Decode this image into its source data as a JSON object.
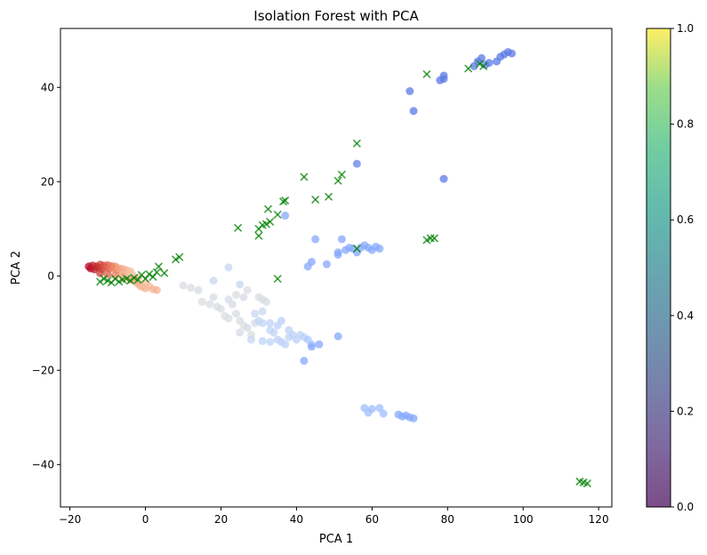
{
  "chart_data": {
    "type": "scatter",
    "title": "Isolation Forest with PCA",
    "xlabel": "PCA 1",
    "ylabel": "PCA 2",
    "xlim": [
      -22.5,
      123.5
    ],
    "ylim": [
      -49,
      52.5
    ],
    "xticks": [
      -20,
      0,
      20,
      40,
      60,
      80,
      100,
      120
    ],
    "yticks": [
      -40,
      -20,
      0,
      20,
      40
    ],
    "grid": false,
    "colorbar": {
      "range": [
        0,
        1
      ],
      "ticks": [
        0.0,
        0.2,
        0.4,
        0.6,
        0.8,
        1.0
      ],
      "tick_labels": [
        "0.0",
        "0.2",
        "0.4",
        "0.6",
        "0.8",
        "1.0"
      ],
      "colormap": "viridis"
    },
    "series": [
      {
        "kind": "inlier",
        "marker": "circle",
        "points": [
          [
            -15,
            2,
            "#b40426"
          ],
          [
            -14.5,
            1.6,
            "#b40426"
          ],
          [
            -14,
            2.2,
            "#be1d2a"
          ],
          [
            -13.5,
            1.4,
            "#be1d2a"
          ],
          [
            -13,
            2.0,
            "#c32e31"
          ],
          [
            -12.5,
            1.8,
            "#c32e31"
          ],
          [
            -12,
            2.4,
            "#cc403a"
          ],
          [
            -11.5,
            1.5,
            "#cc403a"
          ],
          [
            -11,
            2.2,
            "#d24b40"
          ],
          [
            -10.5,
            1.9,
            "#d8594c"
          ],
          [
            -10,
            2.3,
            "#de614d"
          ],
          [
            -9.5,
            1.6,
            "#e36c55"
          ],
          [
            -9,
            2.1,
            "#e8765c"
          ],
          [
            -8.5,
            1.7,
            "#ec8062"
          ],
          [
            -8,
            2.0,
            "#ef8a62"
          ],
          [
            -7.5,
            1.3,
            "#f0906a"
          ],
          [
            -7,
            1.6,
            "#f3a17f"
          ],
          [
            -6.5,
            1.0,
            "#f3a17f"
          ],
          [
            -6,
            1.5,
            "#f4a886"
          ],
          [
            -5.5,
            0.8,
            "#f6b192"
          ],
          [
            -5,
            1.2,
            "#f6b192"
          ],
          [
            -4.5,
            0.6,
            "#f5bc9e"
          ],
          [
            -4,
            1.0,
            "#f5bc9e"
          ],
          [
            -3.5,
            0.4,
            "#f2c6ad"
          ],
          [
            -3,
            -0.4,
            "#f2c6ad"
          ],
          [
            -2.5,
            -1.2,
            "#f5bc9e"
          ],
          [
            -2,
            -1.6,
            "#f6b192"
          ],
          [
            -1.5,
            -2.0,
            "#f6b192"
          ],
          [
            -1,
            -2.3,
            "#f5bc9e"
          ],
          [
            0,
            -2.6,
            "#f6b192"
          ],
          [
            1,
            -2.2,
            "#f5bc9e"
          ],
          [
            2,
            -2.8,
            "#f6b192"
          ],
          [
            3,
            -3.0,
            "#f6b192"
          ],
          [
            -12,
            0.6,
            "#cc403a"
          ],
          [
            -10,
            0.4,
            "#de614d"
          ],
          [
            -8,
            0.2,
            "#ec8062"
          ],
          [
            -6,
            -0.2,
            "#f3a17f"
          ],
          [
            -4,
            -0.8,
            "#f4a886"
          ],
          [
            -2,
            -0.4,
            "#f5bc9e"
          ],
          [
            0,
            -1.6,
            "#f5bc9e"
          ],
          [
            10,
            -2.0,
            "#dadce0"
          ],
          [
            12,
            -2.5,
            "#dadce0"
          ],
          [
            14,
            -3.0,
            "#d5dbe5"
          ],
          [
            15,
            -5.5,
            "#dadce0"
          ],
          [
            17,
            -6.0,
            "#dadce0"
          ],
          [
            18,
            -4.5,
            "#d5dbe5"
          ],
          [
            19,
            -6.5,
            "#dadce0"
          ],
          [
            20,
            -7.0,
            "#dadce0"
          ],
          [
            21,
            -8.5,
            "#dadce0"
          ],
          [
            22,
            -5.0,
            "#d5dbe5"
          ],
          [
            22,
            -9.0,
            "#dadce0"
          ],
          [
            23,
            -6.0,
            "#d5dbe5"
          ],
          [
            24,
            -8.0,
            "#dadce0"
          ],
          [
            25,
            -9.5,
            "#dadce0"
          ],
          [
            25,
            -12.0,
            "#d5dbe5"
          ],
          [
            26,
            -10.5,
            "#dadce0"
          ],
          [
            27,
            -11.0,
            "#d5dbe5"
          ],
          [
            28,
            -12.5,
            "#dadce0"
          ],
          [
            29,
            -10.0,
            "#d5dbe5"
          ],
          [
            30,
            -4.5,
            "#dadce0"
          ],
          [
            31,
            -5.0,
            "#dadce0"
          ],
          [
            32,
            -5.5,
            "#d5dbe5"
          ],
          [
            24,
            -4.0,
            "#dadce0"
          ],
          [
            26,
            -4.5,
            "#d5dbe5"
          ],
          [
            27,
            -3.0,
            "#dadce0"
          ],
          [
            18,
            -1.0,
            "#c9d7f0"
          ],
          [
            22,
            1.8,
            "#c9d7f0"
          ],
          [
            25,
            -1.8,
            "#c9d7f0"
          ],
          [
            30,
            -9.5,
            "#c0d4f5"
          ],
          [
            31,
            -10.0,
            "#c0d4f5"
          ],
          [
            33,
            -11.5,
            "#c0d4f5"
          ],
          [
            34,
            -12.0,
            "#c0d4f5"
          ],
          [
            35,
            -13.5,
            "#bcd2f7"
          ],
          [
            36,
            -14.0,
            "#bcd2f7"
          ],
          [
            37,
            -14.5,
            "#bcd2f7"
          ],
          [
            38,
            -13.0,
            "#bcd2f7"
          ],
          [
            39,
            -12.5,
            "#bcd2f7"
          ],
          [
            40,
            -13.5,
            "#bcd2f7"
          ],
          [
            41,
            -12.5,
            "#bcd2f7"
          ],
          [
            42,
            -13.0,
            "#bcd2f7"
          ],
          [
            33,
            -10.0,
            "#c0d4f5"
          ],
          [
            35,
            -10.5,
            "#bcd2f7"
          ],
          [
            36,
            -9.5,
            "#bcd2f7"
          ],
          [
            38,
            -11.5,
            "#bcd2f7"
          ],
          [
            28,
            -13.5,
            "#c9d7f0"
          ],
          [
            31,
            -13.8,
            "#c0d4f5"
          ],
          [
            33,
            -14.0,
            "#c0d4f5"
          ],
          [
            29,
            -8.0,
            "#c9d7f0"
          ],
          [
            31,
            -7.5,
            "#c9d7f0"
          ],
          [
            43,
            -13.5,
            "#a9c6fd"
          ],
          [
            44,
            -14.5,
            "#a9c6fd"
          ],
          [
            42,
            -18.0,
            "#85a8fc"
          ],
          [
            44,
            -15.0,
            "#85a8fc"
          ],
          [
            46,
            -14.5,
            "#85a8fc"
          ],
          [
            51,
            -12.8,
            "#85a8fc"
          ],
          [
            43,
            2.0,
            "#85a8fc"
          ],
          [
            44,
            3.0,
            "#85a8fc"
          ],
          [
            45,
            7.8,
            "#85a8fc"
          ],
          [
            48,
            2.5,
            "#85a8fc"
          ],
          [
            51,
            4.5,
            "#85a8fc"
          ],
          [
            51,
            5.0,
            "#85a8fc"
          ],
          [
            52,
            7.8,
            "#85a8fc"
          ],
          [
            53,
            5.5,
            "#85a8fc"
          ],
          [
            54,
            6.0,
            "#85a8fc"
          ],
          [
            55,
            5.8,
            "#85a8fc"
          ],
          [
            56,
            5.0,
            "#85a8fc"
          ],
          [
            57,
            6.0,
            "#85a8fc"
          ],
          [
            58,
            6.5,
            "#85a8fc"
          ],
          [
            59,
            6.0,
            "#85a8fc"
          ],
          [
            60,
            5.5,
            "#85a8fc"
          ],
          [
            61,
            6.2,
            "#85a8fc"
          ],
          [
            62,
            5.8,
            "#85a8fc"
          ],
          [
            37,
            12.8,
            "#85a8fc"
          ],
          [
            58,
            -28.0,
            "#9ebeff"
          ],
          [
            59,
            -29.0,
            "#9ebeff"
          ],
          [
            60,
            -28.2,
            "#9ebeff"
          ],
          [
            62,
            -28.0,
            "#9ebeff"
          ],
          [
            63,
            -29.2,
            "#9ebeff"
          ],
          [
            67,
            -29.4,
            "#85a8fc"
          ],
          [
            68,
            -29.8,
            "#85a8fc"
          ],
          [
            69,
            -29.6,
            "#85a8fc"
          ],
          [
            70,
            -30.0,
            "#85a8fc"
          ],
          [
            71,
            -30.2,
            "#85a8fc"
          ],
          [
            56,
            23.8,
            "#6282ea"
          ],
          [
            70,
            39.2,
            "#5b7ae5"
          ],
          [
            71,
            35.0,
            "#5b7ae5"
          ],
          [
            78,
            41.5,
            "#5b7ae5"
          ],
          [
            79,
            42.5,
            "#5b7ae5"
          ],
          [
            79,
            41.8,
            "#5b7ae5"
          ],
          [
            79,
            20.6,
            "#5b7ae5"
          ],
          [
            87,
            44.5,
            "#5b7ae5"
          ],
          [
            88,
            45.5,
            "#5b7ae5"
          ],
          [
            89,
            46.2,
            "#5b7ae5"
          ],
          [
            90,
            44.8,
            "#5b7ae5"
          ],
          [
            91,
            45.2,
            "#5b7ae5"
          ],
          [
            93,
            45.5,
            "#5b7ae5"
          ],
          [
            94,
            46.5,
            "#5b7ae5"
          ],
          [
            95,
            47.0,
            "#5b7ae5"
          ],
          [
            96,
            47.5,
            "#5b7ae5"
          ],
          [
            97,
            47.2,
            "#5b7ae5"
          ]
        ]
      },
      {
        "kind": "anomaly",
        "marker": "x",
        "color": "#008000",
        "points": [
          [
            -12,
            -1.2
          ],
          [
            -11,
            -0.6
          ],
          [
            -10,
            -1.0
          ],
          [
            -9,
            -1.4
          ],
          [
            -8,
            -0.6
          ],
          [
            -7,
            -1.2
          ],
          [
            -6,
            -0.8
          ],
          [
            -5,
            -0.6
          ],
          [
            -4,
            -1.0
          ],
          [
            -3,
            -0.4
          ],
          [
            -2,
            -0.8
          ],
          [
            -1,
            0.2
          ],
          [
            0,
            -0.6
          ],
          [
            1,
            0.4
          ],
          [
            2,
            -0.2
          ],
          [
            3,
            0.8
          ],
          [
            3.5,
            2.0
          ],
          [
            5,
            0.6
          ],
          [
            8,
            3.5
          ],
          [
            9,
            4.0
          ],
          [
            24.5,
            10.2
          ],
          [
            30,
            10.0
          ],
          [
            30,
            8.5
          ],
          [
            31,
            10.8
          ],
          [
            32,
            11.0
          ],
          [
            32.5,
            14.2
          ],
          [
            33,
            11.5
          ],
          [
            35,
            13.0
          ],
          [
            36.5,
            15.8
          ],
          [
            37,
            16.0
          ],
          [
            35,
            -0.6
          ],
          [
            42,
            21.0
          ],
          [
            45,
            16.2
          ],
          [
            48.5,
            16.8
          ],
          [
            51,
            20.2
          ],
          [
            52,
            21.5
          ],
          [
            56,
            28.1
          ],
          [
            56,
            5.8
          ],
          [
            74.5,
            7.6
          ],
          [
            75.5,
            8.0
          ],
          [
            76.5,
            8.0
          ],
          [
            74.5,
            42.8
          ],
          [
            85.5,
            44.0
          ],
          [
            88.5,
            45.0
          ],
          [
            89.5,
            44.5
          ],
          [
            115,
            -43.6
          ],
          [
            116,
            -43.8
          ],
          [
            117,
            -44.0
          ]
        ]
      }
    ]
  }
}
